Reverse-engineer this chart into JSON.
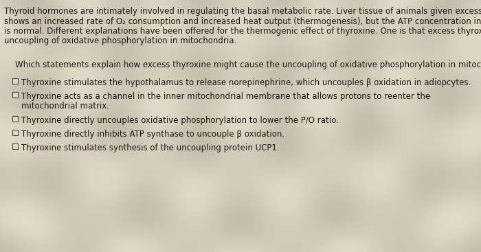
{
  "bg_color": "#d4cbb8",
  "text_color": "#1a1a1a",
  "para_lines": [
    "Thyroid hormones are intimately involved in regulating the basal metabolic rate. Liver tissue of animals given excess thyroxine",
    "shows an increased rate of O₂ consumption and increased heat output (thermogenesis), but the ATP concentration in the tissue",
    "is normal. Different explanations have been offered for the thermogenic effect of thyroxine. One is that excess thyroxine causes",
    "uncoupling of oxidative phosphorylation in mitochondria."
  ],
  "question": "Which statements explain how excess thyroxine might cause the uncoupling of oxidative phosphorylation in mitochondria?",
  "options": [
    "Thyroxine stimulates the hypothalamus to release norepinephrine, which uncouples β oxidation in adiopcytes.",
    "Thyroxine acts as a channel in the inner mitochondrial membrane that allows protons to reenter the\n    mitochondrial matrix.",
    "Thyroxine directly uncouples oxidative phosphorylation to lower the P/O ratio.",
    "Thyroxine directly inhibits ATP synthase to uncouple β oxidation.",
    "Thyroxine stimulates synthesis of the uncoupling protein UCP1."
  ],
  "para_fontsize": 8.5,
  "question_fontsize": 8.5,
  "option_fontsize": 8.5,
  "stripe_light": "#cec5b0",
  "stripe_dark": "#bfb89e",
  "wave_color_light": "#c8c0a8",
  "wave_color_dark": "#b8b098"
}
